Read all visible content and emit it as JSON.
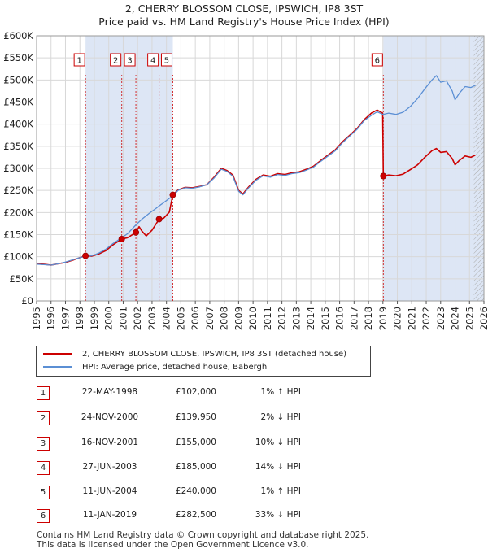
{
  "title_line1": "2, CHERRY BLOSSOM CLOSE, IPSWICH, IP8 3ST",
  "title_line2": "Price paid vs. HM Land Registry's House Price Index (HPI)",
  "chart_data": {
    "type": "line",
    "title": "2, CHERRY BLOSSOM CLOSE, IPSWICH, IP8 3ST — Price paid vs. HM Land Registry's House Price Index (HPI)",
    "xlabel": "",
    "ylabel": "",
    "xlim": [
      1995.0,
      2026.0
    ],
    "ylim": [
      0,
      600000
    ],
    "grid": true,
    "y_ticks": [
      {
        "value": 0,
        "label": "£0"
      },
      {
        "value": 50000,
        "label": "£50K"
      },
      {
        "value": 100000,
        "label": "£100K"
      },
      {
        "value": 150000,
        "label": "£150K"
      },
      {
        "value": 200000,
        "label": "£200K"
      },
      {
        "value": 250000,
        "label": "£250K"
      },
      {
        "value": 300000,
        "label": "£300K"
      },
      {
        "value": 350000,
        "label": "£350K"
      },
      {
        "value": 400000,
        "label": "£400K"
      },
      {
        "value": 450000,
        "label": "£450K"
      },
      {
        "value": 500000,
        "label": "£500K"
      },
      {
        "value": 550000,
        "label": "£550K"
      },
      {
        "value": 600000,
        "label": "£600K"
      }
    ],
    "x_ticks": [
      "1995",
      "1996",
      "1997",
      "1998",
      "1999",
      "2000",
      "2001",
      "2002",
      "2003",
      "2004",
      "2005",
      "2006",
      "2007",
      "2008",
      "2009",
      "2010",
      "2011",
      "2012",
      "2013",
      "2014",
      "2015",
      "2016",
      "2017",
      "2018",
      "2019",
      "2020",
      "2021",
      "2022",
      "2023",
      "2024",
      "2025",
      "2026"
    ],
    "colors": {
      "property": "#cc0000",
      "hpi": "#5b8fd4",
      "shade": "#dde6f5",
      "grid": "#d8d8d8"
    },
    "shaded_spans": [
      [
        1998.39,
        2004.44
      ],
      [
        2019.03,
        2026.0
      ]
    ],
    "hatched_span": [
      2025.3,
      2026.0
    ],
    "series": [
      {
        "name": "2, CHERRY BLOSSOM CLOSE, IPSWICH, IP8 3ST (detached house)",
        "role": "property",
        "points": [
          [
            1995.0,
            84000
          ],
          [
            1995.5,
            83000
          ],
          [
            1996.0,
            81000
          ],
          [
            1996.5,
            84000
          ],
          [
            1997.0,
            87000
          ],
          [
            1997.5,
            92000
          ],
          [
            1998.0,
            98000
          ],
          [
            1998.39,
            102000
          ],
          [
            1998.8,
            101000
          ],
          [
            1999.3,
            106000
          ],
          [
            1999.8,
            114000
          ],
          [
            2000.3,
            127000
          ],
          [
            2000.9,
            139950
          ],
          [
            2001.3,
            143000
          ],
          [
            2001.88,
            155000
          ],
          [
            2002.1,
            168000
          ],
          [
            2002.3,
            158000
          ],
          [
            2002.6,
            147000
          ],
          [
            2003.0,
            160000
          ],
          [
            2003.49,
            185000
          ],
          [
            2003.8,
            187000
          ],
          [
            2004.2,
            201000
          ],
          [
            2004.44,
            240000
          ],
          [
            2004.8,
            251000
          ],
          [
            2005.3,
            257000
          ],
          [
            2005.8,
            256000
          ],
          [
            2006.3,
            259000
          ],
          [
            2006.8,
            263000
          ],
          [
            2007.3,
            280000
          ],
          [
            2007.8,
            300000
          ],
          [
            2008.2,
            295000
          ],
          [
            2008.6,
            285000
          ],
          [
            2009.0,
            250000
          ],
          [
            2009.3,
            242000
          ],
          [
            2009.7,
            258000
          ],
          [
            2010.2,
            275000
          ],
          [
            2010.7,
            285000
          ],
          [
            2011.2,
            282000
          ],
          [
            2011.7,
            288000
          ],
          [
            2012.2,
            286000
          ],
          [
            2012.7,
            290000
          ],
          [
            2013.2,
            292000
          ],
          [
            2013.7,
            298000
          ],
          [
            2014.2,
            305000
          ],
          [
            2014.7,
            318000
          ],
          [
            2015.2,
            330000
          ],
          [
            2015.7,
            342000
          ],
          [
            2016.2,
            360000
          ],
          [
            2016.7,
            375000
          ],
          [
            2017.2,
            390000
          ],
          [
            2017.7,
            410000
          ],
          [
            2018.2,
            425000
          ],
          [
            2018.6,
            432000
          ],
          [
            2018.98,
            425000
          ],
          [
            2019.03,
            282500
          ],
          [
            2019.4,
            285000
          ],
          [
            2019.9,
            283000
          ],
          [
            2020.4,
            287000
          ],
          [
            2020.9,
            297000
          ],
          [
            2021.4,
            308000
          ],
          [
            2021.9,
            325000
          ],
          [
            2022.4,
            340000
          ],
          [
            2022.7,
            345000
          ],
          [
            2023.0,
            336000
          ],
          [
            2023.4,
            338000
          ],
          [
            2023.8,
            322000
          ],
          [
            2024.0,
            308000
          ],
          [
            2024.3,
            318000
          ],
          [
            2024.7,
            328000
          ],
          [
            2025.1,
            325000
          ],
          [
            2025.4,
            330000
          ]
        ]
      },
      {
        "name": "HPI: Average price, detached house, Babergh",
        "role": "hpi",
        "points": [
          [
            1995.0,
            83000
          ],
          [
            1995.5,
            82000
          ],
          [
            1996.0,
            81000
          ],
          [
            1996.5,
            84000
          ],
          [
            1997.0,
            88000
          ],
          [
            1997.5,
            93000
          ],
          [
            1998.0,
            98000
          ],
          [
            1998.39,
            101000
          ],
          [
            1998.8,
            102000
          ],
          [
            1999.3,
            108000
          ],
          [
            1999.8,
            117000
          ],
          [
            2000.3,
            130000
          ],
          [
            2000.9,
            143000
          ],
          [
            2001.3,
            152000
          ],
          [
            2001.88,
            172000
          ],
          [
            2002.3,
            185000
          ],
          [
            2002.8,
            198000
          ],
          [
            2003.3,
            210000
          ],
          [
            2003.49,
            215000
          ],
          [
            2003.8,
            222000
          ],
          [
            2004.2,
            232000
          ],
          [
            2004.44,
            237000
          ],
          [
            2004.8,
            250000
          ],
          [
            2005.3,
            256000
          ],
          [
            2005.8,
            255000
          ],
          [
            2006.3,
            258000
          ],
          [
            2006.8,
            263000
          ],
          [
            2007.3,
            278000
          ],
          [
            2007.8,
            298000
          ],
          [
            2008.2,
            293000
          ],
          [
            2008.6,
            282000
          ],
          [
            2009.0,
            248000
          ],
          [
            2009.3,
            240000
          ],
          [
            2009.7,
            256000
          ],
          [
            2010.2,
            273000
          ],
          [
            2010.7,
            283000
          ],
          [
            2011.2,
            280000
          ],
          [
            2011.7,
            286000
          ],
          [
            2012.2,
            284000
          ],
          [
            2012.7,
            288000
          ],
          [
            2013.2,
            290000
          ],
          [
            2013.7,
            296000
          ],
          [
            2014.2,
            303000
          ],
          [
            2014.7,
            316000
          ],
          [
            2015.2,
            328000
          ],
          [
            2015.7,
            340000
          ],
          [
            2016.2,
            358000
          ],
          [
            2016.7,
            373000
          ],
          [
            2017.2,
            388000
          ],
          [
            2017.7,
            408000
          ],
          [
            2018.2,
            420000
          ],
          [
            2018.6,
            428000
          ],
          [
            2019.0,
            422000
          ],
          [
            2019.4,
            425000
          ],
          [
            2019.9,
            422000
          ],
          [
            2020.4,
            427000
          ],
          [
            2020.9,
            440000
          ],
          [
            2021.4,
            458000
          ],
          [
            2021.9,
            480000
          ],
          [
            2022.4,
            500000
          ],
          [
            2022.7,
            510000
          ],
          [
            2023.0,
            495000
          ],
          [
            2023.4,
            498000
          ],
          [
            2023.8,
            475000
          ],
          [
            2024.0,
            455000
          ],
          [
            2024.3,
            470000
          ],
          [
            2024.7,
            485000
          ],
          [
            2025.1,
            483000
          ],
          [
            2025.4,
            488000
          ]
        ]
      }
    ],
    "sale_markers": [
      {
        "label": "1",
        "x": 1998.39,
        "y": 102000
      },
      {
        "label": "2",
        "x": 2000.9,
        "y": 139950
      },
      {
        "label": "3",
        "x": 2001.88,
        "y": 155000
      },
      {
        "label": "4",
        "x": 2003.49,
        "y": 185000
      },
      {
        "label": "5",
        "x": 2004.44,
        "y": 240000
      },
      {
        "label": "6",
        "x": 2019.03,
        "y": 282500
      }
    ]
  },
  "legend": {
    "property_label": "2, CHERRY BLOSSOM CLOSE, IPSWICH, IP8 3ST (detached house)",
    "hpi_label": "HPI: Average price, detached house, Babergh"
  },
  "transactions": [
    {
      "num": "1",
      "date": "22-MAY-1998",
      "price": "£102,000",
      "hpi": "1% ↑ HPI"
    },
    {
      "num": "2",
      "date": "24-NOV-2000",
      "price": "£139,950",
      "hpi": "2% ↓ HPI"
    },
    {
      "num": "3",
      "date": "16-NOV-2001",
      "price": "£155,000",
      "hpi": "10% ↓ HPI"
    },
    {
      "num": "4",
      "date": "27-JUN-2003",
      "price": "£185,000",
      "hpi": "14% ↓ HPI"
    },
    {
      "num": "5",
      "date": "11-JUN-2004",
      "price": "£240,000",
      "hpi": "1% ↑ HPI"
    },
    {
      "num": "6",
      "date": "11-JAN-2019",
      "price": "£282,500",
      "hpi": "33% ↓ HPI"
    }
  ],
  "footer": {
    "line1": "Contains HM Land Registry data © Crown copyright and database right 2025.",
    "line2": "This data is licensed under the Open Government Licence v3.0."
  }
}
